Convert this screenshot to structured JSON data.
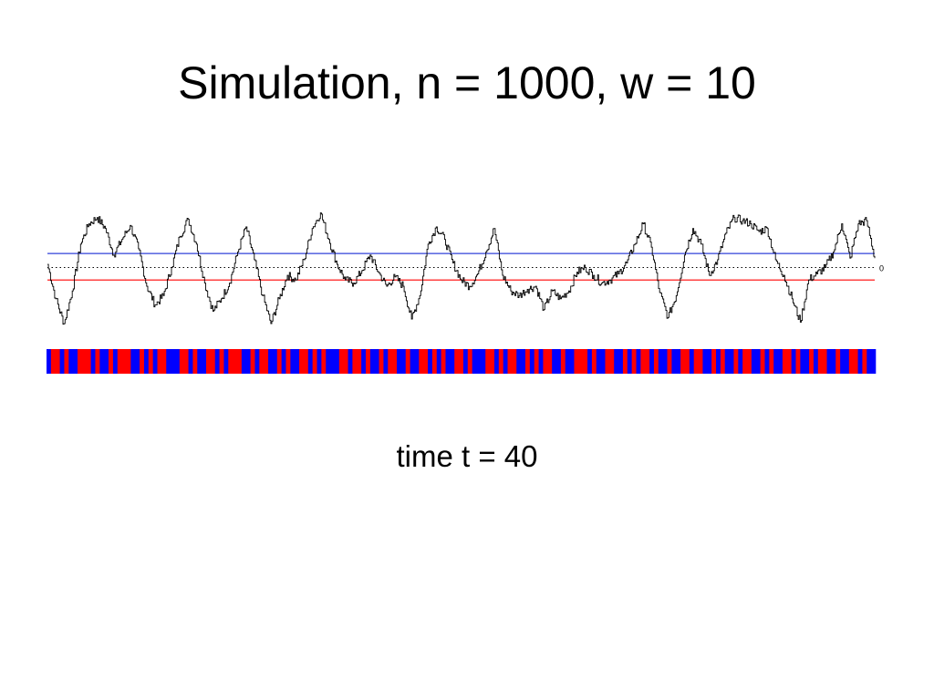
{
  "slide": {
    "title": "Simulation, n = 1000, w = 10",
    "caption": "time t = 40"
  },
  "chart_data": {
    "type": "line",
    "ylim": [
      -4,
      4
    ],
    "y_tick_labels": [
      "0"
    ],
    "reference_lines": [
      {
        "y": 0.9,
        "color": "#3040d8",
        "style": "solid"
      },
      {
        "y": 0,
        "color": "#000000",
        "style": "dotted"
      },
      {
        "y": -0.8,
        "color": "#ff0000",
        "style": "solid"
      }
    ],
    "series": [
      {
        "color": "#000000",
        "x": [
          0,
          10,
          20,
          30,
          40,
          50,
          60,
          70,
          80,
          90,
          100,
          110,
          120,
          130,
          140,
          150,
          160,
          170,
          180,
          190,
          200,
          210,
          220,
          230,
          240,
          250,
          260,
          270,
          280,
          290,
          300,
          310,
          320,
          330,
          340,
          350,
          360,
          370,
          380,
          390,
          400,
          410,
          420,
          430,
          440,
          450,
          460,
          470,
          480,
          490,
          500,
          510,
          520,
          530,
          540,
          550,
          560,
          570,
          580,
          590,
          600,
          610,
          620,
          630,
          640,
          650,
          660,
          670,
          680,
          690,
          700,
          710,
          720,
          730,
          740,
          750,
          760,
          770,
          780,
          790,
          800,
          810,
          820,
          830,
          840,
          850,
          860,
          870,
          880,
          890,
          900,
          910,
          920,
          930,
          940,
          950,
          960,
          970,
          980,
          990,
          1000
        ],
        "y": [
          0.2,
          -2,
          -3.6,
          -1.5,
          1.5,
          2.8,
          3.2,
          2.5,
          0.8,
          1.8,
          2.7,
          1.2,
          -1.2,
          -2.4,
          -1.8,
          0,
          2,
          3.1,
          1.5,
          -1,
          -2.8,
          -2,
          -1,
          1,
          2.6,
          0.5,
          -1.8,
          -3.6,
          -2,
          -0.5,
          -0.8,
          0.5,
          2.5,
          3.5,
          1.8,
          0.2,
          -0.8,
          -1,
          -0.2,
          0.8,
          -0.3,
          -1.2,
          -0.6,
          -1.2,
          -3.3,
          -1.8,
          1.5,
          2.6,
          1.8,
          0.3,
          -0.8,
          -1.2,
          -0.4,
          1,
          2.5,
          -0.5,
          -1.5,
          -1.8,
          -1.4,
          -1.2,
          -2.7,
          -1.5,
          -2,
          -1.5,
          -0.3,
          0,
          -0.5,
          -1,
          -0.8,
          -0.4,
          0.3,
          1.5,
          2.8,
          1.3,
          -1.6,
          -3.2,
          -1.8,
          0.8,
          2.5,
          1.5,
          -0.5,
          0.5,
          2.2,
          3.2,
          3,
          2.8,
          2.3,
          2.5,
          0.5,
          -0.5,
          -2,
          -3.5,
          -0.8,
          -0.4,
          0,
          1,
          2.8,
          0.6,
          2.8,
          3,
          0.6
        ]
      }
    ],
    "strip": {
      "colors": [
        "#ff0000",
        "#0000ff"
      ],
      "states": [
        1,
        0,
        0,
        1,
        0,
        1,
        1,
        0,
        0,
        0,
        1,
        0,
        1,
        1,
        0,
        1,
        0,
        0,
        0,
        1,
        1,
        0,
        1,
        0,
        1,
        0,
        0,
        1,
        1,
        1,
        0,
        0,
        1,
        0,
        1,
        1,
        0,
        0,
        1,
        0,
        1,
        0,
        0,
        0,
        1,
        1,
        0,
        1,
        0,
        0,
        1,
        1,
        0,
        1,
        0,
        1,
        1,
        0,
        0,
        1,
        0,
        1,
        0,
        1,
        1,
        1,
        0,
        0,
        1,
        0,
        0,
        1,
        0,
        1,
        1,
        0,
        1,
        0,
        0,
        1,
        1,
        0,
        1,
        1,
        0,
        0,
        1,
        0,
        1,
        0,
        1,
        1,
        0,
        0,
        1,
        0,
        1,
        1,
        1,
        0,
        0,
        1,
        0,
        1,
        0,
        0,
        1,
        1,
        0,
        1,
        0,
        1,
        0,
        0,
        1,
        1,
        0,
        1,
        1,
        0,
        0,
        0,
        1,
        0,
        1,
        1,
        0,
        0,
        1,
        1,
        0,
        1,
        0,
        1,
        0,
        0,
        1,
        0,
        1,
        1,
        0,
        1,
        1,
        0,
        0,
        1,
        0,
        0,
        1,
        1,
        0,
        1,
        0,
        1,
        1,
        0,
        1,
        0,
        0,
        1,
        1,
        0,
        1,
        0,
        1,
        1,
        0,
        0,
        1,
        0,
        1,
        1,
        0,
        1,
        0,
        0,
        1,
        1,
        0,
        1,
        1,
        0,
        0,
        1,
        0,
        1,
        1
      ]
    }
  }
}
